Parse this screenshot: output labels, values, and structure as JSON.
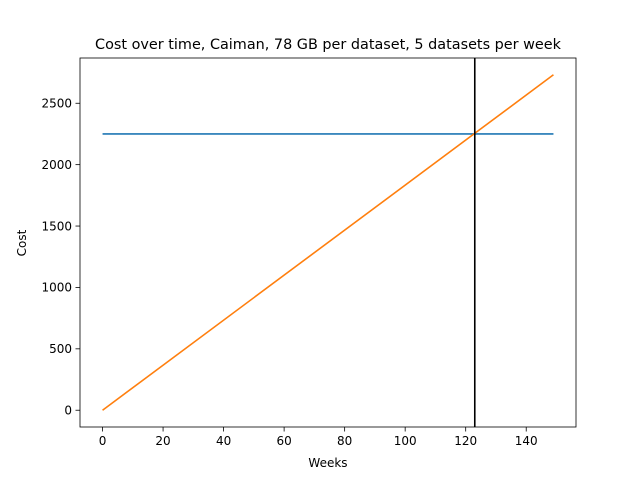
{
  "chart_data": {
    "type": "line",
    "title": "Cost over time, Caiman, 78 GB per dataset, 5 datasets per week",
    "xlabel": "Weeks",
    "ylabel": "Cost",
    "xlim": [
      -7.45,
      156.45
    ],
    "ylim": [
      -136.6,
      2868.6
    ],
    "xticks": [
      0,
      20,
      40,
      60,
      80,
      100,
      120,
      140
    ],
    "yticks": [
      0,
      500,
      1000,
      1500,
      2000,
      2500
    ],
    "grid": false,
    "legend": "none",
    "series": [
      {
        "values": [
          [
            0,
            2250
          ],
          [
            149,
            2250
          ]
        ],
        "color": "#1f77b4"
      },
      {
        "values": [
          [
            0,
            0
          ],
          [
            149,
            2732
          ]
        ],
        "color": "#ff7f0e"
      }
    ],
    "vlines": [
      {
        "x": 123,
        "color": "#000000"
      }
    ]
  }
}
